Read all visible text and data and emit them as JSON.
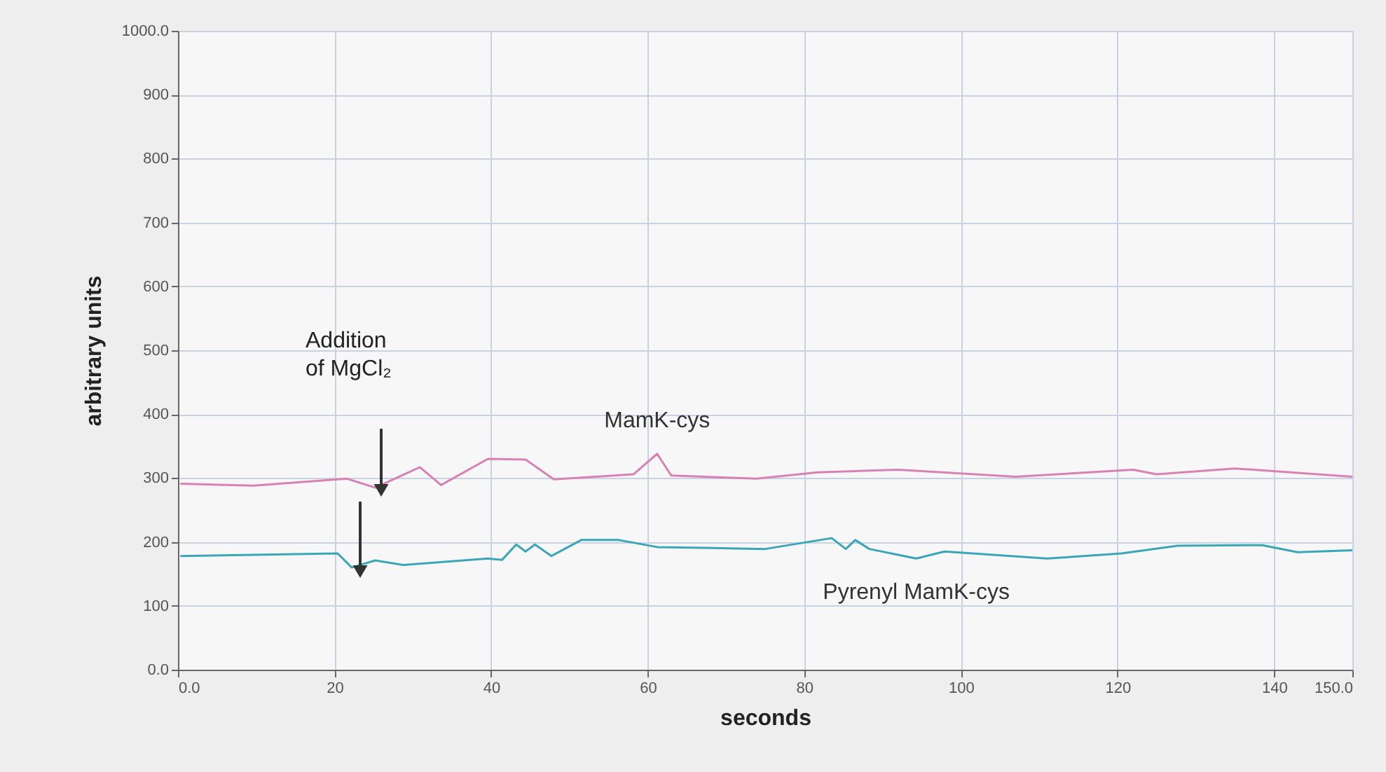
{
  "chart_data": {
    "type": "line",
    "xlabel": "seconds",
    "ylabel": "arbitrary units",
    "xlim": [
      0,
      150
    ],
    "ylim": [
      0,
      1000
    ],
    "xticks": [
      {
        "value": 0,
        "label": "0.0"
      },
      20,
      40,
      60,
      80,
      100,
      120,
      140,
      {
        "value": 150,
        "label": "150.0"
      }
    ],
    "yticks": [
      {
        "value": 0,
        "label": "0.0"
      },
      100,
      200,
      300,
      400,
      500,
      600,
      700,
      800,
      900,
      {
        "value": 1000,
        "label": "1000.0"
      }
    ],
    "grid": true,
    "marker": "none",
    "line_style": "solid",
    "annotations": [
      "Addition of MgCl₂"
    ],
    "series": [
      {
        "name": "MamK-cys",
        "color": "#d882b4",
        "x": [
          0.3,
          9.6,
          21.6,
          25.2,
          30.9,
          33.6,
          39.6,
          44.4,
          48,
          58.2,
          61.2,
          63,
          73.9,
          81.7,
          92,
          107,
          122,
          125,
          135,
          150
        ],
        "values": [
          291,
          288,
          299,
          285,
          317,
          289,
          330,
          329,
          298,
          306,
          338,
          304,
          299,
          309,
          313,
          302,
          313,
          306,
          315,
          302
        ]
      },
      {
        "name": "Pyrenyl MamK-cys",
        "color": "#3aa6b6",
        "x": [
          0.3,
          20.4,
          22.2,
          25.2,
          28.8,
          39.6,
          41.4,
          43.2,
          44.4,
          45.6,
          47.7,
          51.5,
          56.3,
          61.2,
          75,
          83.5,
          85.3,
          86.5,
          88.3,
          94.3,
          97.9,
          111,
          120.5,
          127.7,
          138.5,
          143,
          150
        ],
        "values": [
          178,
          182,
          160,
          171,
          164,
          174,
          172,
          196,
          185,
          196,
          178,
          203,
          203,
          192,
          189,
          206,
          189,
          203,
          189,
          174,
          185,
          174,
          182,
          194,
          195,
          184,
          187
        ]
      }
    ]
  }
}
